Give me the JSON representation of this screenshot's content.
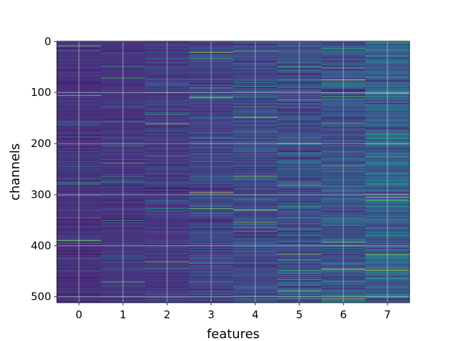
{
  "chart_data": {
    "type": "heatmap",
    "title": "",
    "xlabel": "features",
    "ylabel": "channels",
    "x_categories": [
      0,
      1,
      2,
      3,
      4,
      5,
      6,
      7
    ],
    "x_tick_labels": [
      "0",
      "1",
      "2",
      "3",
      "4",
      "5",
      "6",
      "7"
    ],
    "y_ticks": [
      0,
      100,
      200,
      300,
      400,
      500
    ],
    "y_tick_labels": [
      "0",
      "100",
      "200",
      "300",
      "400",
      "500"
    ],
    "ylim": [
      511.5,
      -0.5
    ],
    "xlim": [
      -0.5,
      7.5
    ],
    "n_rows": 512,
    "colormap": "viridis",
    "grid": true,
    "column_profiles": [
      {
        "feature": 0,
        "typical_value": 0.14,
        "variability": 0.05
      },
      {
        "feature": 1,
        "typical_value": 0.15,
        "variability": 0.05
      },
      {
        "feature": 2,
        "typical_value": 0.17,
        "variability": 0.07
      },
      {
        "feature": 3,
        "typical_value": 0.2,
        "variability": 0.1
      },
      {
        "feature": 4,
        "typical_value": 0.22,
        "variability": 0.12
      },
      {
        "feature": 5,
        "typical_value": 0.24,
        "variability": 0.14
      },
      {
        "feature": 6,
        "typical_value": 0.26,
        "variability": 0.15
      },
      {
        "feature": 7,
        "typical_value": 0.3,
        "variability": 0.16
      }
    ]
  },
  "colors": {
    "grid": "#d9d9d9",
    "axis": "#000000",
    "background": "#ffffff"
  }
}
